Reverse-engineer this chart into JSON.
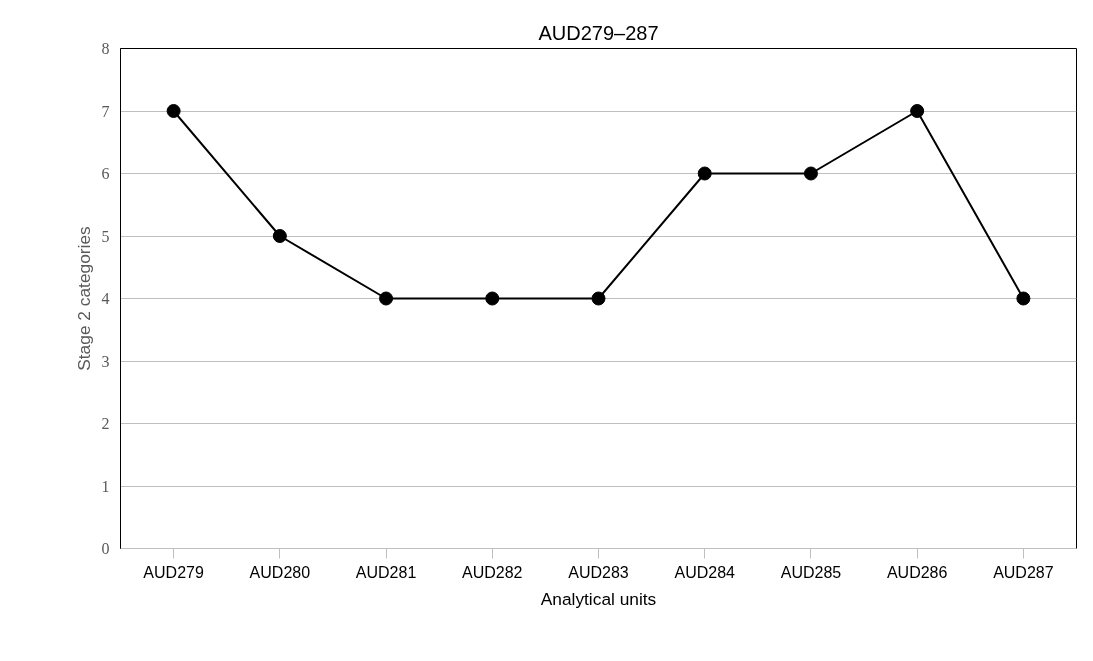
{
  "chart_data": {
    "type": "line",
    "title": "AUD279–287",
    "xlabel": "Analytical units",
    "ylabel": "Stage 2 categories",
    "categories": [
      "AUD279",
      "AUD280",
      "AUD281",
      "AUD282",
      "AUD283",
      "AUD284",
      "AUD285",
      "AUD286",
      "AUD287"
    ],
    "series": [
      {
        "color": "#000000",
        "values": [
          7,
          5,
          4,
          4,
          4,
          6,
          6,
          7,
          4
        ]
      }
    ],
    "ylim": [
      0,
      8
    ],
    "yticks": [
      0,
      1,
      2,
      3,
      4,
      5,
      6,
      7,
      8
    ],
    "grid": "y",
    "marker": "circle",
    "line_style": "solid"
  }
}
